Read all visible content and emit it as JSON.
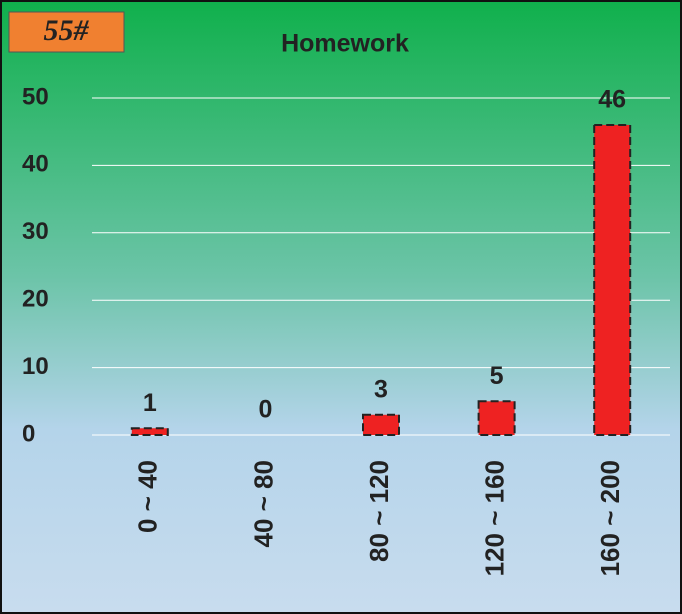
{
  "badge": "55#",
  "chart_data": {
    "type": "bar",
    "title": "Homework",
    "categories": [
      "0 ~ 40",
      "40 ~ 80",
      "80 ~ 120",
      "120 ~ 160",
      "160 ~ 200"
    ],
    "values": [
      1,
      0,
      3,
      5,
      46
    ],
    "color": "#ee2222",
    "ylim": [
      0,
      50
    ],
    "yticks": [
      0,
      10,
      20,
      30,
      40,
      50
    ],
    "grid": true
  }
}
